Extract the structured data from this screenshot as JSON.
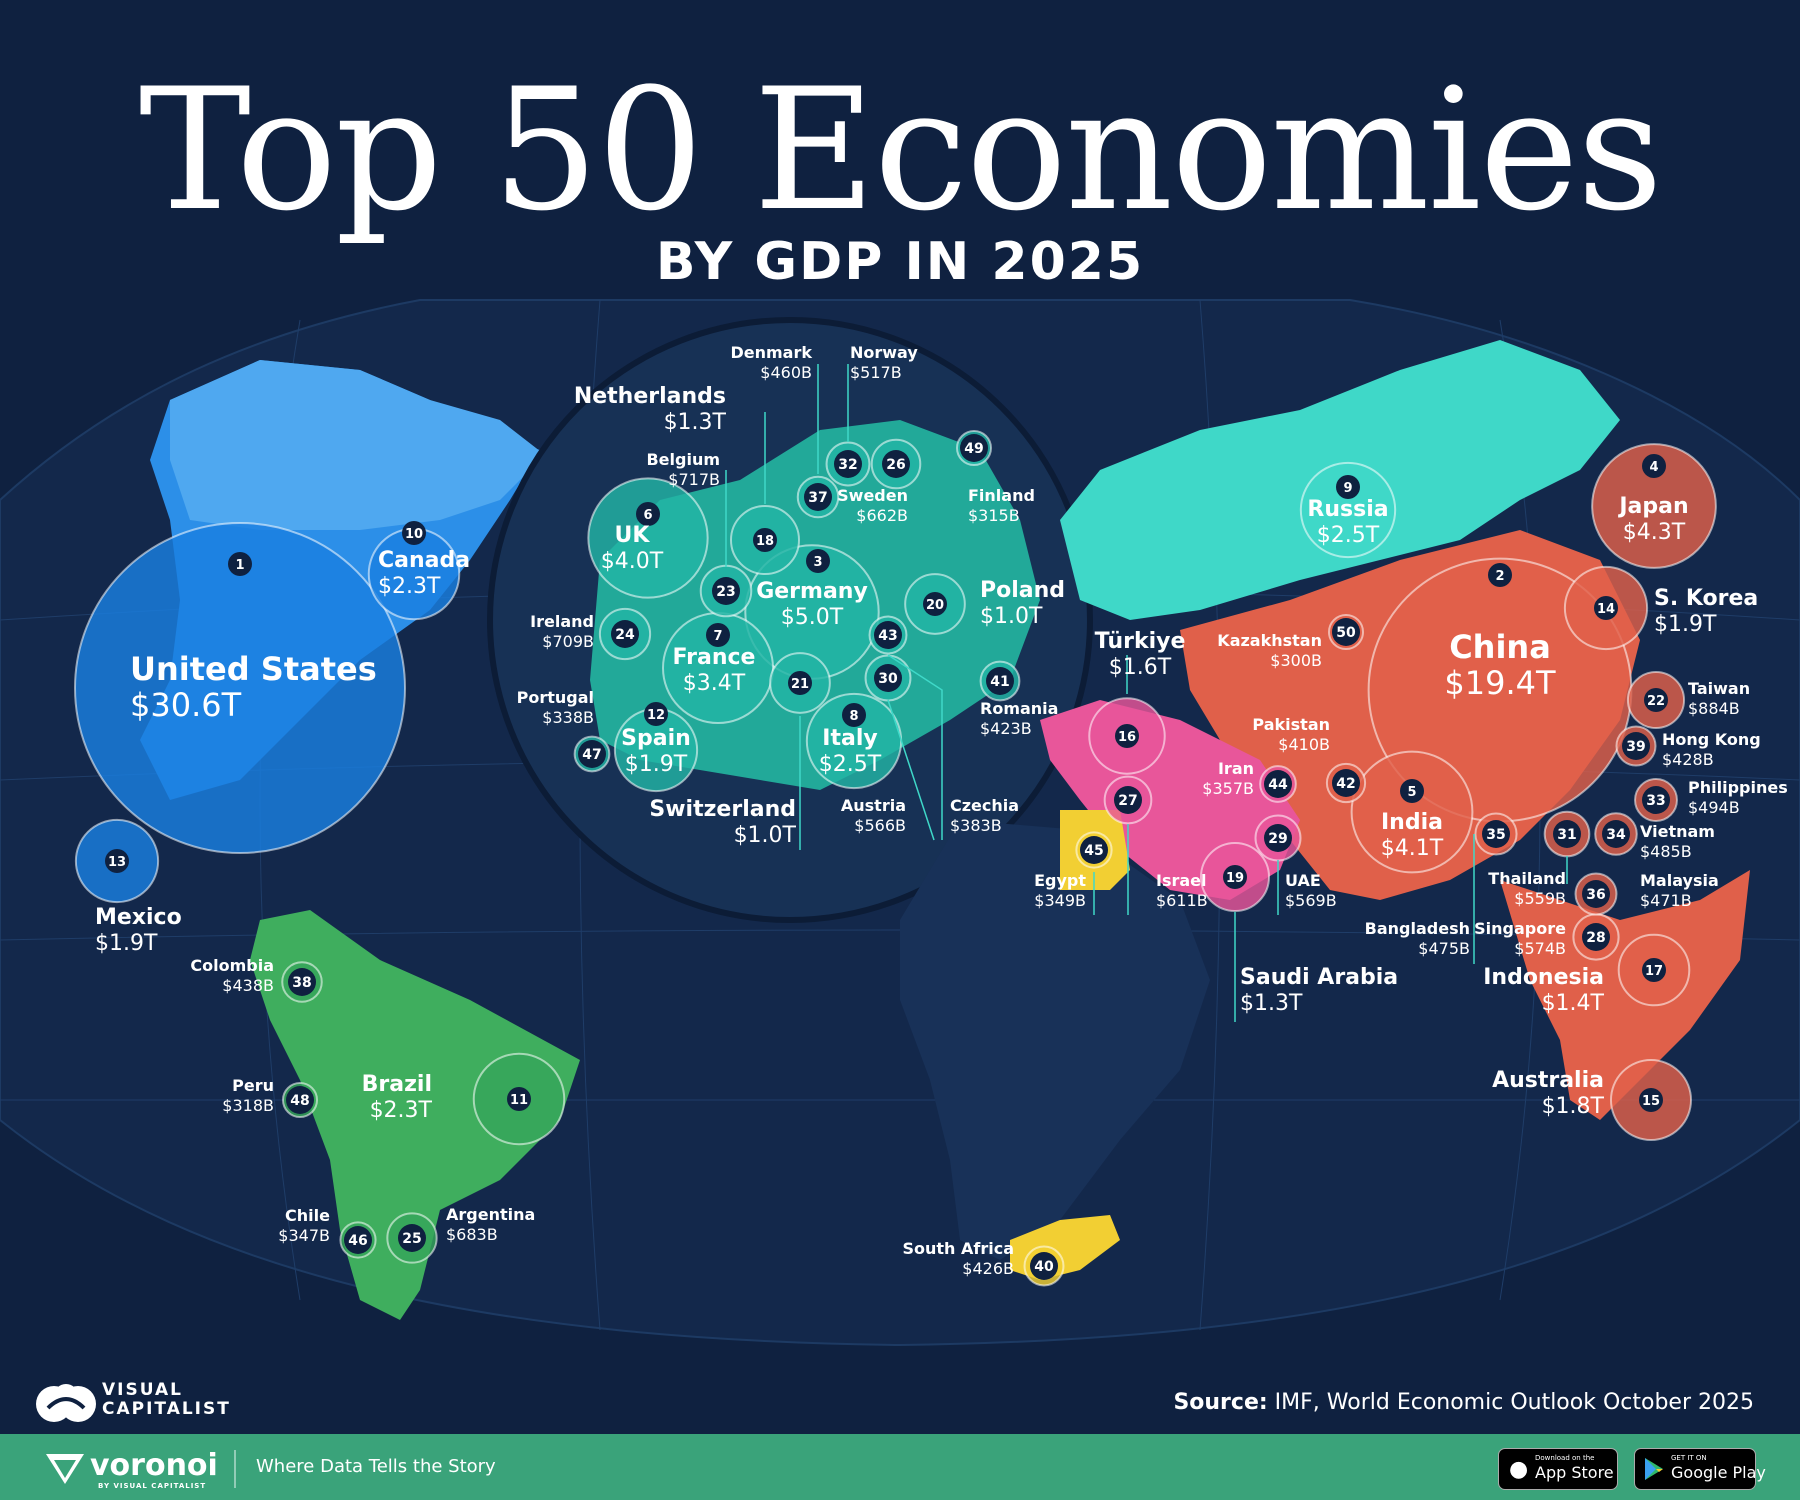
{
  "title": "Top 50 Economies",
  "subtitle": "BY GDP IN 2025",
  "source_label": "Source:",
  "source_text": "IMF, World Economic Outlook October 2025",
  "brand": {
    "vc_name": "VISUAL\nCAPITALIST",
    "voronoi": "voronoi",
    "voronoi_by": "BY VISUAL CAPITALIST",
    "tagline": "Where Data Tells the Story"
  },
  "stores": {
    "apple_small": "Download on the",
    "apple_big": "App Store",
    "google_small": "GET IT ON",
    "google_big": "Google Play"
  },
  "colors": {
    "background": "#0f2140",
    "north_america": "#1a7fe0",
    "south_america": "#36a65a",
    "europe": "#22b5a5",
    "russia_asia_north": "#3fd8c8",
    "asia": "#e0604a",
    "middle_east": "#e8569a",
    "africa": "#f2cf33",
    "footer": "#3aa37a"
  },
  "economies": [
    {
      "rank": "1",
      "name": "United States",
      "value": "$30.6T",
      "gdp_t": 30.6,
      "region": "north_america"
    },
    {
      "rank": "2",
      "name": "China",
      "value": "$19.4T",
      "gdp_t": 19.4,
      "region": "asia"
    },
    {
      "rank": "3",
      "name": "Germany",
      "value": "$5.0T",
      "gdp_t": 5.0,
      "region": "europe"
    },
    {
      "rank": "4",
      "name": "Japan",
      "value": "$4.3T",
      "gdp_t": 4.3,
      "region": "asia"
    },
    {
      "rank": "5",
      "name": "India",
      "value": "$4.1T",
      "gdp_t": 4.1,
      "region": "asia"
    },
    {
      "rank": "6",
      "name": "UK",
      "value": "$4.0T",
      "gdp_t": 4.0,
      "region": "europe"
    },
    {
      "rank": "7",
      "name": "France",
      "value": "$3.4T",
      "gdp_t": 3.4,
      "region": "europe"
    },
    {
      "rank": "8",
      "name": "Italy",
      "value": "$2.5T",
      "gdp_t": 2.5,
      "region": "europe"
    },
    {
      "rank": "9",
      "name": "Russia",
      "value": "$2.5T",
      "gdp_t": 2.5,
      "region": "russia_asia_north"
    },
    {
      "rank": "10",
      "name": "Canada",
      "value": "$2.3T",
      "gdp_t": 2.3,
      "region": "north_america"
    },
    {
      "rank": "11",
      "name": "Brazil",
      "value": "$2.3T",
      "gdp_t": 2.3,
      "region": "south_america"
    },
    {
      "rank": "12",
      "name": "Spain",
      "value": "$1.9T",
      "gdp_t": 1.9,
      "region": "europe"
    },
    {
      "rank": "13",
      "name": "Mexico",
      "value": "$1.9T",
      "gdp_t": 1.9,
      "region": "north_america"
    },
    {
      "rank": "14",
      "name": "S. Korea",
      "value": "$1.9T",
      "gdp_t": 1.9,
      "region": "asia"
    },
    {
      "rank": "15",
      "name": "Australia",
      "value": "$1.8T",
      "gdp_t": 1.8,
      "region": "asia"
    },
    {
      "rank": "16",
      "name": "Türkiye",
      "value": "$1.6T",
      "gdp_t": 1.6,
      "region": "middle_east"
    },
    {
      "rank": "17",
      "name": "Indonesia",
      "value": "$1.4T",
      "gdp_t": 1.4,
      "region": "asia"
    },
    {
      "rank": "18",
      "name": "Netherlands",
      "value": "$1.3T",
      "gdp_t": 1.3,
      "region": "europe"
    },
    {
      "rank": "19",
      "name": "Saudi Arabia",
      "value": "$1.3T",
      "gdp_t": 1.3,
      "region": "middle_east"
    },
    {
      "rank": "20",
      "name": "Poland",
      "value": "$1.0T",
      "gdp_t": 1.0,
      "region": "europe"
    },
    {
      "rank": "21",
      "name": "Switzerland",
      "value": "$1.0T",
      "gdp_t": 1.0,
      "region": "europe"
    },
    {
      "rank": "22",
      "name": "Taiwan",
      "value": "$884B",
      "gdp_t": 0.884,
      "region": "asia"
    },
    {
      "rank": "23",
      "name": "Belgium",
      "value": "$717B",
      "gdp_t": 0.717,
      "region": "europe"
    },
    {
      "rank": "24",
      "name": "Ireland",
      "value": "$709B",
      "gdp_t": 0.709,
      "region": "europe"
    },
    {
      "rank": "25",
      "name": "Argentina",
      "value": "$683B",
      "gdp_t": 0.683,
      "region": "south_america"
    },
    {
      "rank": "26",
      "name": "Sweden",
      "value": "$662B",
      "gdp_t": 0.662,
      "region": "europe"
    },
    {
      "rank": "27",
      "name": "Israel",
      "value": "$611B",
      "gdp_t": 0.611,
      "region": "middle_east"
    },
    {
      "rank": "28",
      "name": "Singapore",
      "value": "$574B",
      "gdp_t": 0.574,
      "region": "asia"
    },
    {
      "rank": "29",
      "name": "UAE",
      "value": "$569B",
      "gdp_t": 0.569,
      "region": "middle_east"
    },
    {
      "rank": "30",
      "name": "Austria",
      "value": "$566B",
      "gdp_t": 0.566,
      "region": "europe"
    },
    {
      "rank": "31",
      "name": "Thailand",
      "value": "$559B",
      "gdp_t": 0.559,
      "region": "asia"
    },
    {
      "rank": "32",
      "name": "Norway",
      "value": "$517B",
      "gdp_t": 0.517,
      "region": "europe"
    },
    {
      "rank": "33",
      "name": "Philippines",
      "value": "$494B",
      "gdp_t": 0.494,
      "region": "asia"
    },
    {
      "rank": "34",
      "name": "Vietnam",
      "value": "$485B",
      "gdp_t": 0.485,
      "region": "asia"
    },
    {
      "rank": "35",
      "name": "Bangladesh",
      "value": "$475B",
      "gdp_t": 0.475,
      "region": "asia"
    },
    {
      "rank": "36",
      "name": "Malaysia",
      "value": "$471B",
      "gdp_t": 0.471,
      "region": "asia"
    },
    {
      "rank": "37",
      "name": "Denmark",
      "value": "$460B",
      "gdp_t": 0.46,
      "region": "europe"
    },
    {
      "rank": "38",
      "name": "Colombia",
      "value": "$438B",
      "gdp_t": 0.438,
      "region": "south_america"
    },
    {
      "rank": "39",
      "name": "Hong Kong",
      "value": "$428B",
      "gdp_t": 0.428,
      "region": "asia"
    },
    {
      "rank": "40",
      "name": "South Africa",
      "value": "$426B",
      "gdp_t": 0.426,
      "region": "africa"
    },
    {
      "rank": "41",
      "name": "Romania",
      "value": "$423B",
      "gdp_t": 0.423,
      "region": "europe"
    },
    {
      "rank": "42",
      "name": "Pakistan",
      "value": "$410B",
      "gdp_t": 0.41,
      "region": "asia"
    },
    {
      "rank": "43",
      "name": "Czechia",
      "value": "$383B",
      "gdp_t": 0.383,
      "region": "europe"
    },
    {
      "rank": "44",
      "name": "Iran",
      "value": "$357B",
      "gdp_t": 0.357,
      "region": "middle_east"
    },
    {
      "rank": "45",
      "name": "Egypt",
      "value": "$349B",
      "gdp_t": 0.349,
      "region": "africa"
    },
    {
      "rank": "46",
      "name": "Chile",
      "value": "$347B",
      "gdp_t": 0.347,
      "region": "south_america"
    },
    {
      "rank": "47",
      "name": "Portugal",
      "value": "$338B",
      "gdp_t": 0.338,
      "region": "europe"
    },
    {
      "rank": "48",
      "name": "Peru",
      "value": "$318B",
      "gdp_t": 0.318,
      "region": "south_america"
    },
    {
      "rank": "49",
      "name": "Finland",
      "value": "$315B",
      "gdp_t": 0.315,
      "region": "europe"
    },
    {
      "rank": "50",
      "name": "Kazakhstan",
      "value": "$300B",
      "gdp_t": 0.3,
      "region": "asia"
    }
  ]
}
